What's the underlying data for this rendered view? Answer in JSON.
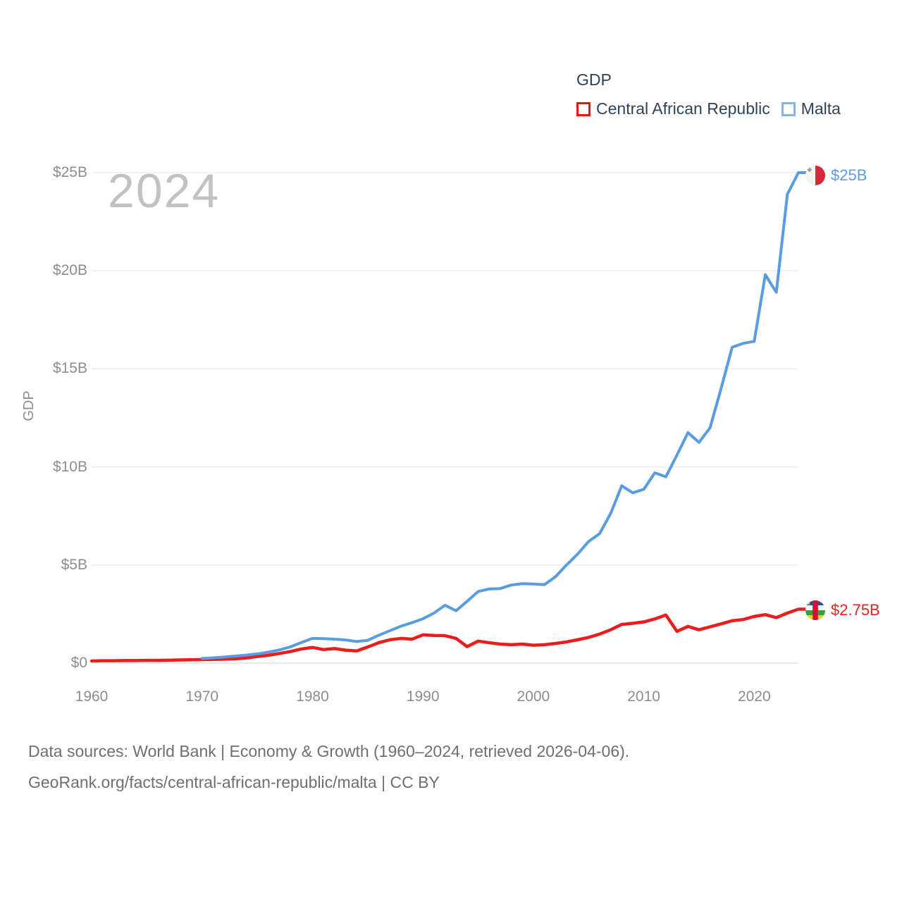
{
  "watermark": "2024",
  "legend": {
    "title": "GDP",
    "items": [
      {
        "label": "Central African Republic",
        "box_color": "#fb0d0d"
      },
      {
        "label": "Malta",
        "box_color": "#84b5e9"
      }
    ]
  },
  "footer": {
    "line1": "Data sources: World Bank | Economy & Growth (1960–2024, retrieved 2026-04-06).",
    "line2": "GeoRank.org/facts/central-african-republic/malta | CC BY"
  },
  "chart_data": {
    "type": "line",
    "title": "GDP",
    "ylabel": "GDP",
    "units": "billions of current US$",
    "x_range": [
      1960,
      2024
    ],
    "ylim": [
      0,
      25
    ],
    "grid": "horizontal",
    "legend_position": "top-right",
    "y_ticks": [
      {
        "label": "$0",
        "value": 0
      },
      {
        "label": "$5B",
        "value": 5
      },
      {
        "label": "$10B",
        "value": 10
      },
      {
        "label": "$15B",
        "value": 15
      },
      {
        "label": "$20B",
        "value": 20
      },
      {
        "label": "$25B",
        "value": 25
      }
    ],
    "x_ticks": [
      {
        "label": "1960",
        "year": 1960
      },
      {
        "label": "1970",
        "year": 1970
      },
      {
        "label": "1980",
        "year": 1980
      },
      {
        "label": "1990",
        "year": 1990
      },
      {
        "label": "2000",
        "year": 2000
      },
      {
        "label": "2010",
        "year": 2010
      },
      {
        "label": "2020",
        "year": 2020
      }
    ],
    "series": [
      {
        "name": "Central African Republic",
        "color": "#ea1d1d",
        "end_label": "$2.75B",
        "years": [
          1960,
          1961,
          1962,
          1963,
          1964,
          1965,
          1966,
          1967,
          1968,
          1969,
          1970,
          1971,
          1972,
          1973,
          1974,
          1975,
          1976,
          1977,
          1978,
          1979,
          1980,
          1981,
          1982,
          1983,
          1984,
          1985,
          1986,
          1987,
          1988,
          1989,
          1990,
          1991,
          1992,
          1993,
          1994,
          1995,
          1996,
          1997,
          1998,
          1999,
          2000,
          2001,
          2002,
          2003,
          2004,
          2005,
          2006,
          2007,
          2008,
          2009,
          2010,
          2011,
          2012,
          2013,
          2014,
          2015,
          2016,
          2017,
          2018,
          2019,
          2020,
          2021,
          2022,
          2023,
          2024
        ],
        "values": [
          0.11,
          0.12,
          0.12,
          0.13,
          0.13,
          0.14,
          0.14,
          0.15,
          0.16,
          0.17,
          0.18,
          0.19,
          0.2,
          0.22,
          0.26,
          0.34,
          0.4,
          0.49,
          0.59,
          0.72,
          0.8,
          0.69,
          0.74,
          0.66,
          0.62,
          0.82,
          1.04,
          1.19,
          1.26,
          1.22,
          1.44,
          1.41,
          1.4,
          1.26,
          0.84,
          1.12,
          1.04,
          0.97,
          0.94,
          0.97,
          0.91,
          0.94,
          1.0,
          1.08,
          1.19,
          1.31,
          1.48,
          1.7,
          1.97,
          2.03,
          2.1,
          2.25,
          2.45,
          1.62,
          1.87,
          1.7,
          1.85,
          2.0,
          2.16,
          2.22,
          2.38,
          2.47,
          2.32,
          2.55,
          2.75
        ]
      },
      {
        "name": "Malta",
        "color": "#5a9ce0",
        "end_label": "$25B",
        "years": [
          1970,
          1971,
          1972,
          1973,
          1974,
          1975,
          1976,
          1977,
          1978,
          1979,
          1980,
          1981,
          1982,
          1983,
          1984,
          1985,
          1986,
          1987,
          1988,
          1989,
          1990,
          1991,
          1992,
          1993,
          1994,
          1995,
          1996,
          1997,
          1998,
          1999,
          2000,
          2001,
          2002,
          2003,
          2004,
          2005,
          2006,
          2007,
          2008,
          2009,
          2010,
          2011,
          2012,
          2013,
          2014,
          2015,
          2016,
          2017,
          2018,
          2019,
          2020,
          2021,
          2022,
          2023,
          2024
        ],
        "values": [
          0.24,
          0.27,
          0.31,
          0.36,
          0.41,
          0.47,
          0.56,
          0.67,
          0.83,
          1.05,
          1.26,
          1.25,
          1.22,
          1.18,
          1.1,
          1.16,
          1.42,
          1.65,
          1.88,
          2.06,
          2.26,
          2.55,
          2.95,
          2.67,
          3.15,
          3.65,
          3.78,
          3.8,
          3.98,
          4.05,
          4.03,
          4.0,
          4.4,
          5.0,
          5.55,
          6.2,
          6.6,
          7.63,
          9.04,
          8.68,
          8.86,
          9.7,
          9.5,
          10.6,
          11.75,
          11.25,
          12.0,
          14.0,
          16.1,
          16.3,
          16.4,
          19.8,
          18.9,
          23.9,
          25.0
        ]
      }
    ]
  }
}
